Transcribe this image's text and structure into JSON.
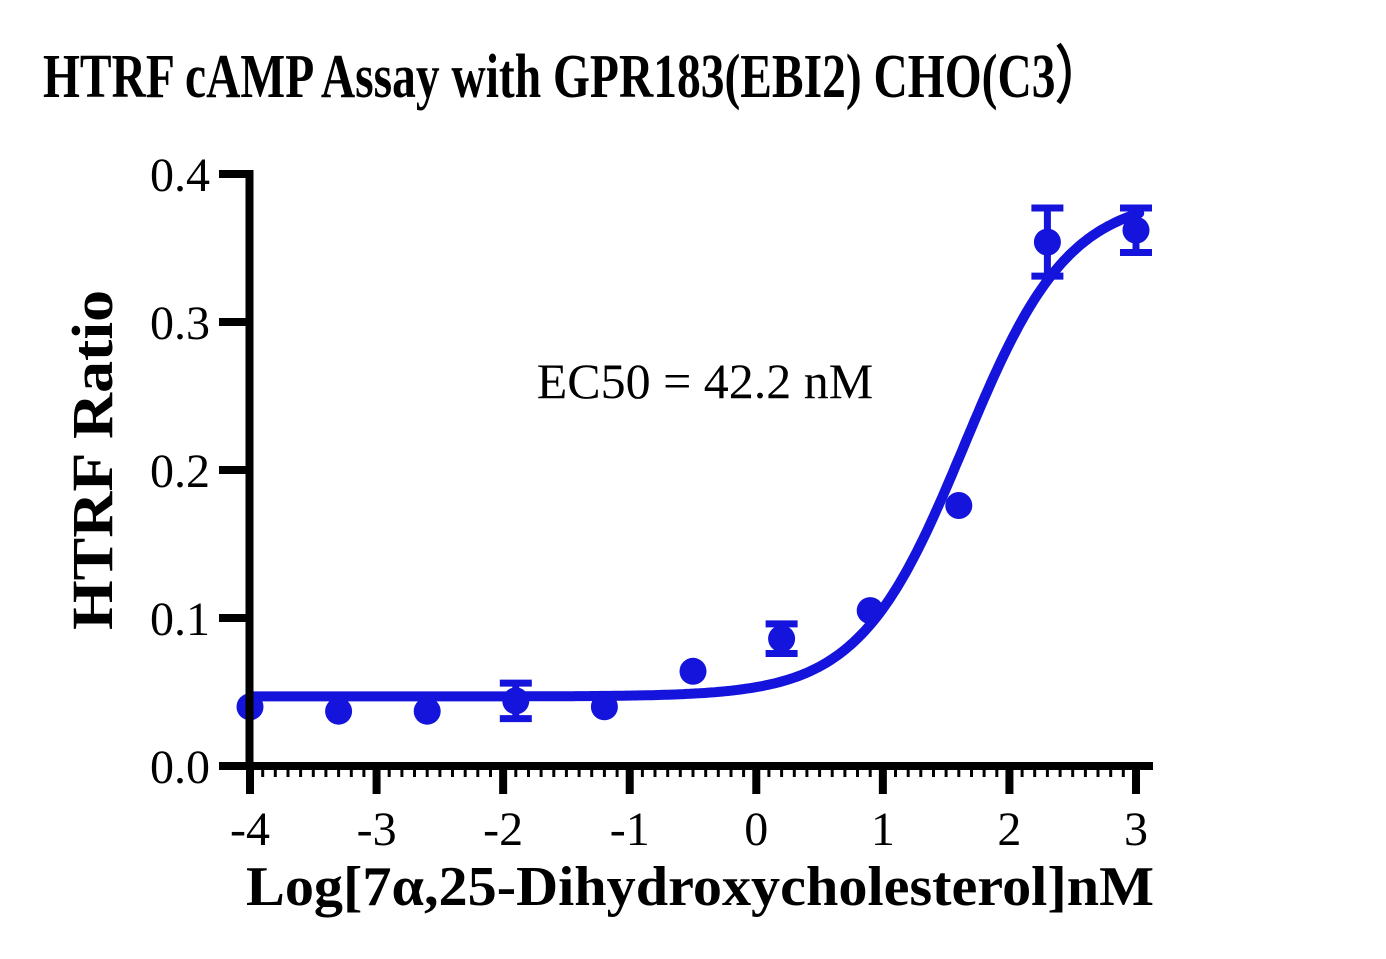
{
  "chart_data": {
    "type": "scatter",
    "title": "HTRF cAMP Assay with GPR183(EBI2) CHO(C3）",
    "xlabel": "Log[7α,25-Dihydroxycholesterol]nM",
    "ylabel": "HTRF Ratio",
    "annotation": "EC50 = 42.2 nM",
    "xlim": [
      -4,
      3
    ],
    "ylim": [
      0,
      0.4
    ],
    "xticks": [
      "-4",
      "-3",
      "-2",
      "-1",
      "0",
      "1",
      "2",
      "3"
    ],
    "yticks": [
      "0.0",
      "0.1",
      "0.2",
      "0.3",
      "0.4"
    ],
    "x_minor_tick_step": 0.1,
    "grid": false,
    "legend": "none",
    "series": [
      {
        "marker": "circle",
        "x": [
          -4.0,
          -3.3,
          -2.6,
          -1.9,
          -1.2,
          -0.5,
          0.2,
          0.9,
          1.6,
          2.3,
          3.0
        ],
        "y": [
          0.04,
          0.037,
          0.037,
          0.044,
          0.04,
          0.064,
          0.086,
          0.105,
          0.176,
          0.354,
          0.362
        ],
        "yerr": [
          0,
          0,
          0,
          0.012,
          0,
          0,
          0.01,
          0,
          0,
          0.023,
          0.015
        ]
      }
    ],
    "curve_fit": {
      "model": "4PL sigmoid",
      "bottom": 0.047,
      "top": 0.385,
      "log_ec50": 1.64,
      "hill": 1.05,
      "ec50_nM": 42.2
    },
    "colors": {
      "series": "#1414dc",
      "axis": "#000000",
      "text": "#000000",
      "background": "#ffffff"
    }
  }
}
